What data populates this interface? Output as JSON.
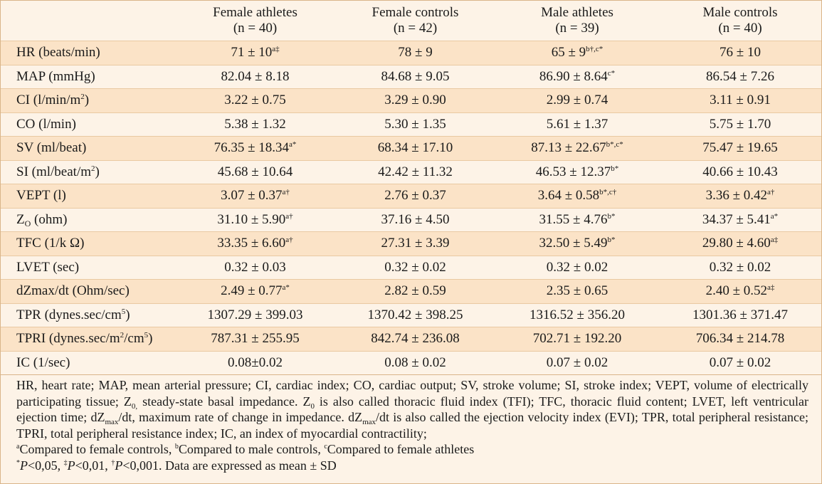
{
  "header": {
    "columns": [
      {
        "label": "Female athletes",
        "n": "(n = 40)"
      },
      {
        "label": "Female controls",
        "n": "(n = 42)"
      },
      {
        "label": "Male athletes",
        "n": "(n = 39)"
      },
      {
        "label": "Male controls",
        "n": "(n = 40)"
      }
    ]
  },
  "rows": [
    {
      "label": "HR (beats/min)",
      "cells": [
        {
          "v": "71 ± 10",
          "s": "a‡"
        },
        {
          "v": "78 ± 9",
          "s": ""
        },
        {
          "v": "65 ± 9",
          "s": "b†,c*"
        },
        {
          "v": "76 ± 10",
          "s": ""
        }
      ]
    },
    {
      "label": "MAP (mmHg)",
      "cells": [
        {
          "v": "82.04 ± 8.18",
          "s": ""
        },
        {
          "v": "84.68 ± 9.05",
          "s": ""
        },
        {
          "v": "86.90 ± 8.64",
          "s": "c*"
        },
        {
          "v": "86.54 ± 7.26",
          "s": ""
        }
      ]
    },
    {
      "label_main": "CI (l/min/m",
      "label_sup": "2",
      "label_end": ")",
      "cells": [
        {
          "v": "3.22 ± 0.75",
          "s": ""
        },
        {
          "v": "3.29 ± 0.90",
          "s": ""
        },
        {
          "v": "2.99 ± 0.74",
          "s": ""
        },
        {
          "v": "3.11 ± 0.91",
          "s": ""
        }
      ]
    },
    {
      "label": "CO (l/min)",
      "cells": [
        {
          "v": "5.38 ± 1.32",
          "s": ""
        },
        {
          "v": "5.30 ± 1.35",
          "s": ""
        },
        {
          "v": "5.61 ± 1.37",
          "s": ""
        },
        {
          "v": "5.75 ± 1.70",
          "s": ""
        }
      ]
    },
    {
      "label": "SV (ml/beat)",
      "cells": [
        {
          "v": "76.35 ± 18.34",
          "s": "a*"
        },
        {
          "v": "68.34 ± 17.10",
          "s": ""
        },
        {
          "v": "87.13 ± 22.67",
          "s": "b*,c*"
        },
        {
          "v": "75.47 ± 19.65",
          "s": ""
        }
      ]
    },
    {
      "label_main": "SI (ml/beat/m",
      "label_sup": "2",
      "label_end": ")",
      "cells": [
        {
          "v": "45.68 ± 10.64",
          "s": ""
        },
        {
          "v": "42.42 ± 11.32",
          "s": ""
        },
        {
          "v": "46.53 ± 12.37",
          "s": "b*"
        },
        {
          "v": "40.66 ± 10.43",
          "s": ""
        }
      ]
    },
    {
      "label": "VEPT (l)",
      "cells": [
        {
          "v": "3.07 ± 0.37",
          "s": "a†"
        },
        {
          "v": "2.76 ± 0.37",
          "s": ""
        },
        {
          "v": "3.64 ± 0.58",
          "s": "b*,c†"
        },
        {
          "v": "3.36 ± 0.42",
          "s": "a†"
        }
      ]
    },
    {
      "label_main": "Z",
      "label_sub": "O",
      "label_end": " (ohm)",
      "cells": [
        {
          "v": "31.10 ± 5.90",
          "s": "a†"
        },
        {
          "v": "37.16 ± 4.50",
          "s": ""
        },
        {
          "v": "31.55 ± 4.76",
          "s": "b*"
        },
        {
          "v": "34.37 ± 5.41",
          "s": "a*"
        }
      ]
    },
    {
      "label": "TFC (1/k Ω)",
      "cells": [
        {
          "v": "33.35 ± 6.60",
          "s": "a†"
        },
        {
          "v": "27.31 ± 3.39",
          "s": ""
        },
        {
          "v": "32.50 ± 5.49",
          "s": "b*"
        },
        {
          "v": "29.80 ± 4.60",
          "s": "a‡"
        }
      ]
    },
    {
      "label": "LVET (sec)",
      "cells": [
        {
          "v": "0.32 ± 0.03",
          "s": ""
        },
        {
          "v": "0.32 ± 0.02",
          "s": ""
        },
        {
          "v": "0.32 ± 0.02",
          "s": ""
        },
        {
          "v": "0.32 ± 0.02",
          "s": ""
        }
      ]
    },
    {
      "label": "dZmax/dt (Ohm/sec)",
      "cells": [
        {
          "v": "2.49 ± 0.77",
          "s": "a*"
        },
        {
          "v": "2.82 ± 0.59",
          "s": ""
        },
        {
          "v": "2.35 ± 0.65",
          "s": ""
        },
        {
          "v": "2.40 ± 0.52",
          "s": "a‡"
        }
      ]
    },
    {
      "label_main": "TPR (dynes.sec/cm",
      "label_sup": "5",
      "label_end": ")",
      "cells": [
        {
          "v": "1307.29 ± 399.03",
          "s": ""
        },
        {
          "v": "1370.42 ± 398.25",
          "s": ""
        },
        {
          "v": "1316.52 ± 356.20",
          "s": ""
        },
        {
          "v": "1301.36 ± 371.47",
          "s": ""
        }
      ]
    },
    {
      "label_main": "TPRI (dynes.sec/m",
      "label_sup": "2",
      "label_mid": "/cm",
      "label_sup2": "5",
      "label_end": ")",
      "cells": [
        {
          "v": "787.31 ± 255.95",
          "s": ""
        },
        {
          "v": "842.74 ± 236.08",
          "s": ""
        },
        {
          "v": "702.71 ± 192.20",
          "s": ""
        },
        {
          "v": "706.34 ± 214.78",
          "s": ""
        }
      ]
    },
    {
      "label": "IC (1/sec)",
      "cells": [
        {
          "v": "0.08±0.02",
          "s": ""
        },
        {
          "v": "0.08 ± 0.02",
          "s": ""
        },
        {
          "v": "0.07 ± 0.02",
          "s": ""
        },
        {
          "v": "0.07 ± 0.02",
          "s": ""
        }
      ]
    }
  ],
  "footnotes": {
    "p1_a": "HR, heart rate; MAP, mean arterial pressure; CI, cardiac index; CO, cardiac output; SV, stroke volume; SI, stroke index; VEPT, volume of electrically participating tissue; Z",
    "p1_sub1": "0,",
    "p1_b": " steady-state basal impedance. Z",
    "p1_sub2": "0",
    "p1_c": " is also called thoracic fluid index (TFI); TFC, thoracic fluid content; LVET, left ventricular ejection time; dZ",
    "p1_sub3": "max",
    "p1_d": "/dt, maximum rate of change in impedance. dZ",
    "p1_sub4": "max",
    "p1_e": "/dt is also called the ejection velocity index (EVI); TPR, total peripheral resistance; TPRI, total peripheral resistance index; IC, an index of myocardial contractility;",
    "cmp_a_sup": "a",
    "cmp_a": "Compared to female controls, ",
    "cmp_b_sup": "b",
    "cmp_b": "Compared to male controls, ",
    "cmp_c_sup": "c",
    "cmp_c": "Compared to female athletes",
    "sig1_sup": "*",
    "sig1_p": "P",
    "sig1": "<0,05, ",
    "sig2_sup": "‡",
    "sig2_p": "P",
    "sig2": "<0,01, ",
    "sig3_sup": "†",
    "sig3_p": "P",
    "sig3": "<0,001. Data are expressed as mean ± SD"
  }
}
